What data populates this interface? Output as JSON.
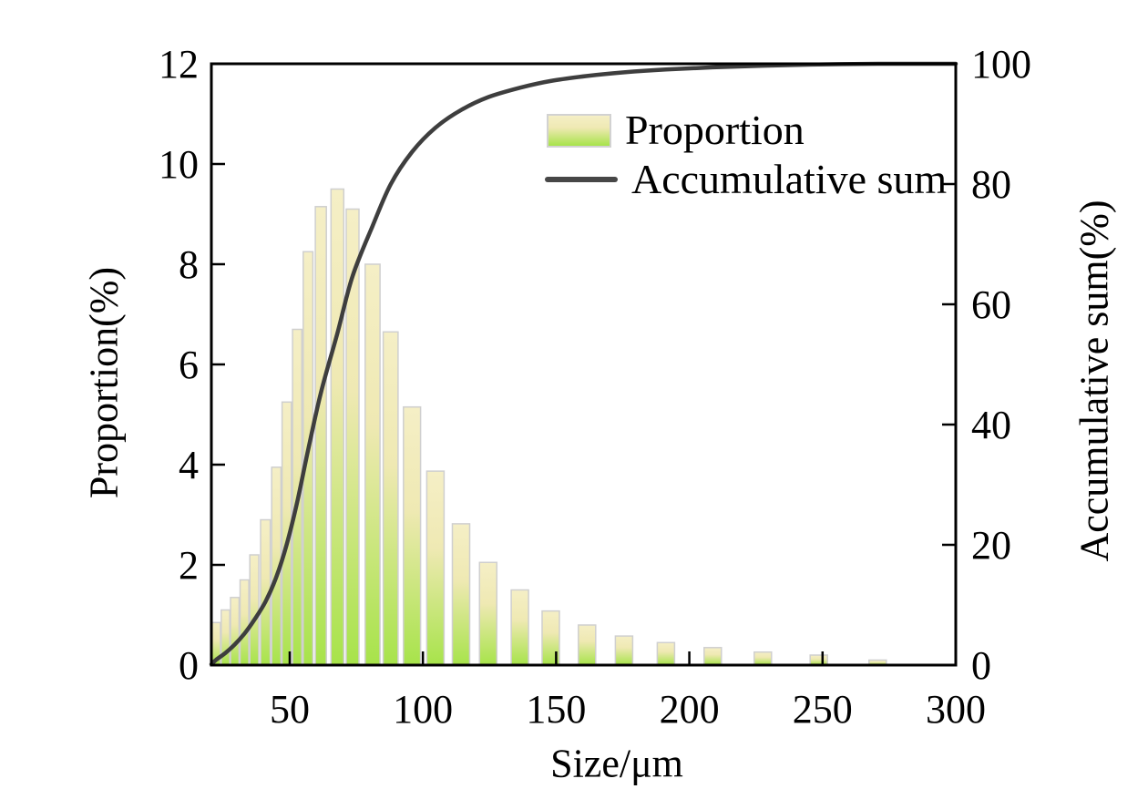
{
  "figure": {
    "background": "#ffffff",
    "axis_color": "#000000",
    "bar_border_color": "#cfcfcf",
    "bar_gradient": [
      "#f5efc6",
      "#efe9b3",
      "#a7e34a"
    ],
    "line_color": "#3e3e3e"
  },
  "legend": {
    "proportion": "Proportion",
    "accumulative": "Accumulative sum"
  },
  "chart_data": {
    "type": "combo",
    "title": "",
    "xlabel": "Size/μm",
    "ylabel_left": "Proportion(%)",
    "ylabel_right": "Accumulative sum(%)",
    "xlim": [
      20.6,
      300
    ],
    "ylim_left": [
      0,
      12
    ],
    "ylim_right": [
      0,
      100
    ],
    "xticks": [
      50,
      100,
      150,
      200,
      250,
      300
    ],
    "yticks_left": [
      0,
      2,
      4,
      6,
      8,
      10,
      12
    ],
    "yticks_right": [
      0,
      20,
      40,
      60,
      80,
      100
    ],
    "grid": false,
    "legend_position": "upper center",
    "series": [
      {
        "name": "Proportion",
        "type": "bar",
        "axis": "left",
        "x": [
          22.4,
          25.9,
          29.4,
          33.0,
          36.7,
          40.9,
          45.0,
          48.9,
          52.8,
          56.9,
          61.7,
          67.9,
          73.6,
          81.1,
          87.9,
          95.9,
          104.7,
          114.3,
          124.5,
          136.4,
          148.0,
          161.6,
          175.5,
          191.2,
          208.8,
          227.6,
          248.6,
          270.7
        ],
        "values": [
          0.85,
          1.1,
          1.35,
          1.7,
          2.2,
          2.9,
          3.95,
          5.25,
          6.7,
          8.25,
          9.15,
          9.5,
          9.1,
          8.0,
          6.65,
          5.15,
          3.87,
          2.82,
          2.05,
          1.5,
          1.08,
          0.8,
          0.58,
          0.45,
          0.35,
          0.26,
          0.2,
          0.1
        ]
      },
      {
        "name": "Accumulative sum",
        "type": "line",
        "axis": "right",
        "x": [
          20.6,
          22.4,
          25.9,
          29.4,
          33.0,
          36.7,
          40.9,
          45.0,
          48.9,
          52.8,
          56.9,
          61.7,
          67.9,
          73.6,
          81.1,
          87.9,
          95.9,
          104.7,
          114.3,
          124.5,
          136.4,
          148.0,
          161.6,
          175.5,
          191.2,
          208.8,
          227.6,
          248.6,
          270.7,
          285.0,
          300.0
        ],
        "values": [
          0.15,
          0.89,
          2.03,
          3.44,
          5.22,
          7.51,
          10.54,
          14.66,
          20.13,
          27.12,
          35.73,
          45.27,
          55.18,
          64.68,
          73.02,
          79.96,
          85.33,
          89.37,
          92.31,
          94.45,
          96.01,
          97.14,
          97.97,
          98.58,
          99.05,
          99.41,
          99.68,
          99.89,
          100.0,
          100.0,
          100.0
        ]
      }
    ]
  }
}
